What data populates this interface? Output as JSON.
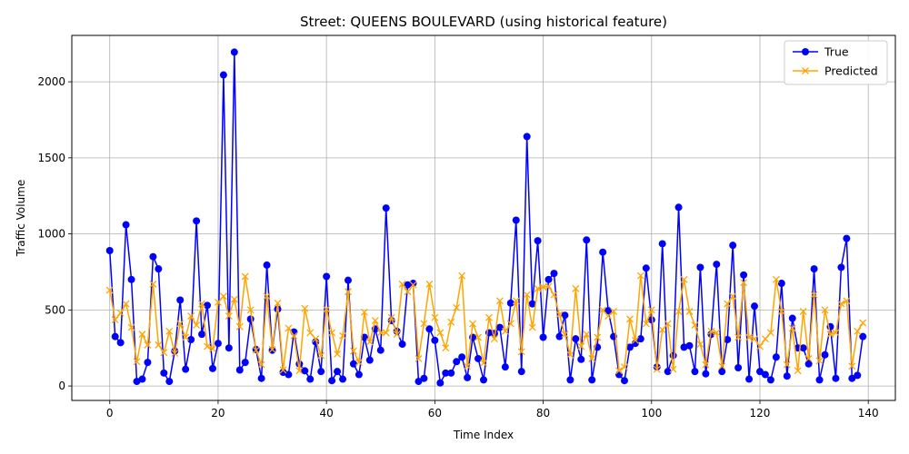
{
  "chart_data": {
    "type": "line",
    "title": "Street: QUEENS BOULEVARD (using historical feature)",
    "xlabel": "Time Index",
    "ylabel": "Traffic Volume",
    "xlim": [
      -7,
      145
    ],
    "ylim": [
      -95,
      2305
    ],
    "xticks": [
      0,
      20,
      40,
      60,
      80,
      100,
      120,
      140
    ],
    "yticks": [
      0,
      500,
      1000,
      1500,
      2000
    ],
    "grid": true,
    "legend_position": "top-right",
    "series": [
      {
        "name": "True",
        "color": "#0000ff",
        "marker": "circle",
        "values": [
          890,
          325,
          285,
          1060,
          700,
          30,
          45,
          155,
          850,
          770,
          85,
          30,
          230,
          565,
          110,
          305,
          1085,
          340,
          530,
          115,
          280,
          2045,
          250,
          2195,
          105,
          155,
          440,
          240,
          50,
          795,
          235,
          505,
          90,
          75,
          355,
          145,
          100,
          45,
          290,
          95,
          720,
          35,
          95,
          45,
          695,
          145,
          75,
          320,
          170,
          375,
          235,
          1170,
          430,
          360,
          275,
          665,
          675,
          30,
          50,
          375,
          300,
          20,
          85,
          85,
          160,
          190,
          55,
          320,
          180,
          40,
          350,
          345,
          385,
          125,
          545,
          1090,
          95,
          1640,
          540,
          955,
          320,
          700,
          740,
          325,
          465,
          40,
          310,
          175,
          960,
          40,
          255,
          880,
          495,
          325,
          75,
          35,
          255,
          280,
          310,
          775,
          435,
          125,
          935,
          95,
          200,
          1175,
          255,
          265,
          95,
          780,
          80,
          340,
          800,
          95,
          305,
          925,
          120,
          730,
          45,
          525,
          95,
          75,
          40,
          190,
          675,
          65,
          445,
          250,
          250,
          145,
          770,
          40,
          205,
          390,
          50,
          780,
          970,
          50,
          70,
          325
        ]
      },
      {
        "name": "Predicted",
        "color": "#ffa500",
        "marker": "x",
        "values": [
          630,
          435,
          480,
          540,
          385,
          160,
          340,
          270,
          670,
          270,
          220,
          360,
          215,
          410,
          320,
          460,
          400,
          540,
          260,
          245,
          550,
          590,
          460,
          570,
          390,
          720,
          500,
          235,
          140,
          590,
          240,
          545,
          105,
          380,
          330,
          100,
          510,
          350,
          310,
          200,
          505,
          350,
          210,
          330,
          620,
          230,
          155,
          485,
          290,
          430,
          350,
          350,
          450,
          340,
          670,
          620,
          665,
          180,
          410,
          670,
          450,
          350,
          250,
          420,
          515,
          725,
          130,
          410,
          320,
          150,
          450,
          310,
          560,
          360,
          410,
          560,
          225,
          600,
          385,
          640,
          650,
          655,
          600,
          470,
          340,
          205,
          640,
          260,
          340,
          180,
          320,
          500,
          460,
          490,
          100,
          125,
          440,
          300,
          725,
          410,
          500,
          110,
          370,
          410,
          110,
          490,
          700,
          490,
          400,
          275,
          140,
          360,
          350,
          130,
          540,
          590,
          320,
          680,
          320,
          310,
          260,
          310,
          350,
          700,
          490,
          140,
          380,
          100,
          490,
          180,
          600,
          165,
          500,
          340,
          350,
          540,
          560,
          130,
          360,
          415
        ]
      }
    ]
  }
}
